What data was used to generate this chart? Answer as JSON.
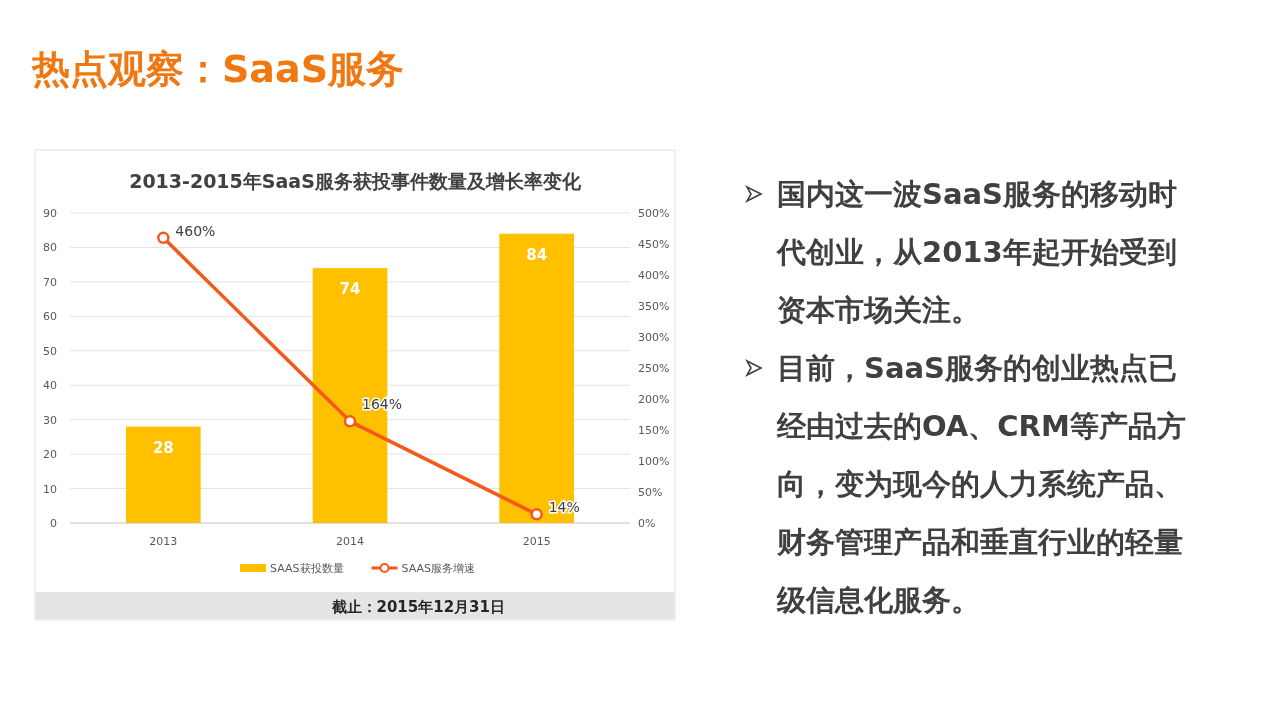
{
  "chart_data": {
    "type": "bar",
    "title": "热点观察：SaaS服务",
    "subtitle": "2013-2015年SaaS服务获投事件数量及增长率变化",
    "categories": [
      "2013",
      "2014",
      "2015"
    ],
    "series": [
      {
        "name": "SAAS获投数量",
        "color": "#ffc000",
        "values": [
          28,
          74,
          84
        ],
        "value_labels": [
          "28",
          "74",
          "84"
        ]
      },
      {
        "name": "SAAS服务增速",
        "type": "line",
        "axis": "y2",
        "color": "#f4581a",
        "marker": "circle",
        "values": [
          460,
          164,
          14
        ],
        "value_labels": [
          "460%",
          "164%",
          "14%"
        ]
      }
    ],
    "ylim": [
      0,
      90
    ],
    "yticks": [
      0,
      10,
      20,
      30,
      40,
      50,
      60,
      70,
      80,
      90
    ],
    "y2lim": [
      0,
      500
    ],
    "y2ticks": [
      {
        "value": 0,
        "label": "0%"
      },
      {
        "value": 50,
        "label": "50%"
      },
      {
        "value": 100,
        "label": "100%"
      },
      {
        "value": 150,
        "label": "150%"
      },
      {
        "value": 200,
        "label": "200%"
      },
      {
        "value": 250,
        "label": "250%"
      },
      {
        "value": 300,
        "label": "300%"
      },
      {
        "value": 350,
        "label": "350%"
      },
      {
        "value": 400,
        "label": "400%"
      },
      {
        "value": 450,
        "label": "450%"
      },
      {
        "value": 500,
        "label": "500%"
      }
    ],
    "grid": "y",
    "legend": "bottom",
    "annotations": [
      "截止：2015年12月31日",
      "国内这一波SaaS服务的移动时代创业，从2013年起开始受到资本市场关注。",
      "目前，SaaS服务的创业热点已经由过去的OA、CRM等产品方向，变为现今的人力系统产品、财务管理产品和垂直行业的轻量级信息化服务。"
    ]
  }
}
